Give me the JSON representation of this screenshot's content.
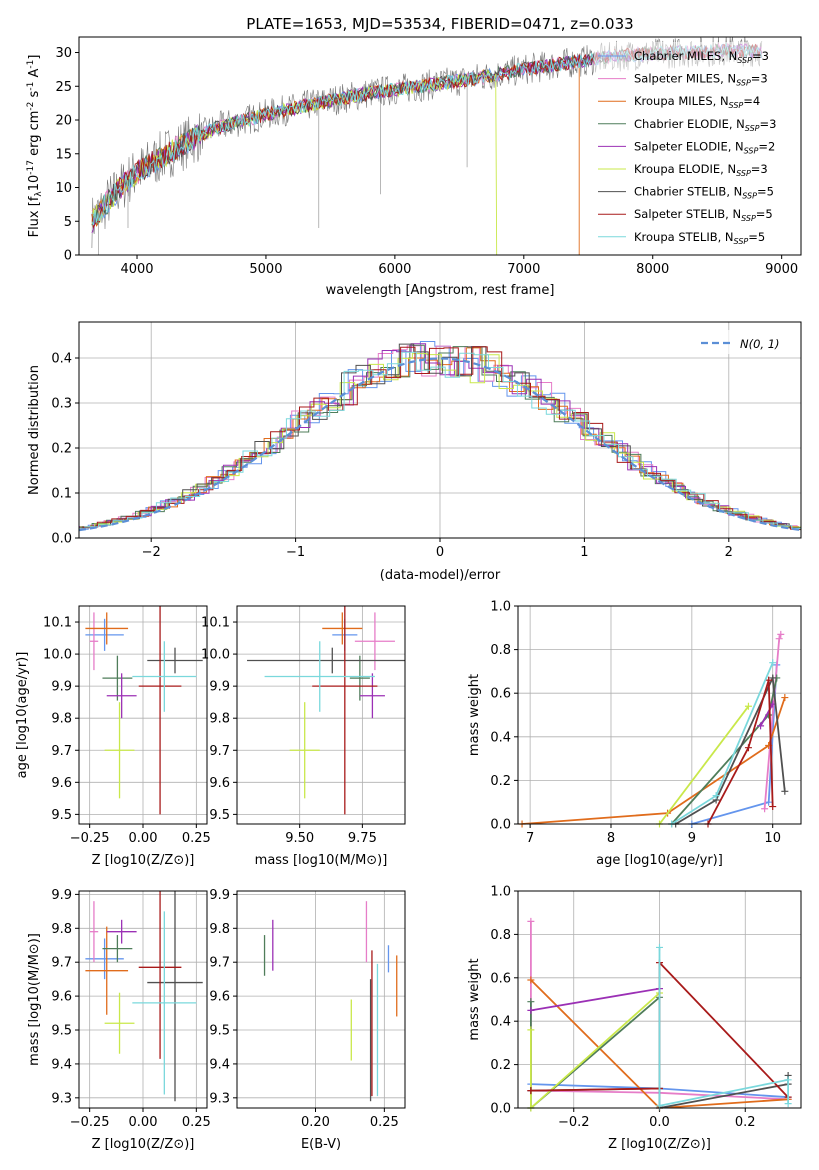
{
  "title": "PLATE=1653, MJD=53534, FIBERID=0471, z=0.033",
  "models": [
    {
      "name": "Chabrier MILES",
      "nssp": "3",
      "color": "#6495ed"
    },
    {
      "name": "Salpeter MILES",
      "nssp": "3",
      "color": "#e67dc8"
    },
    {
      "name": "Kroupa MILES",
      "nssp": "4",
      "color": "#e06c1c"
    },
    {
      "name": "Chabrier ELODIE",
      "nssp": "3",
      "color": "#4f7d5a"
    },
    {
      "name": "Salpeter ELODIE",
      "nssp": "2",
      "color": "#9b30b5"
    },
    {
      "name": "Kroupa ELODIE",
      "nssp": "3",
      "color": "#c9e84a"
    },
    {
      "name": "Chabrier STELIB",
      "nssp": "5",
      "color": "#505050"
    },
    {
      "name": "Salpeter STELIB",
      "nssp": "5",
      "color": "#a81a1a"
    },
    {
      "name": "Kroupa STELIB",
      "nssp": "5",
      "color": "#7ad8dc"
    }
  ],
  "chart_data": [
    {
      "id": "spectrum",
      "type": "line",
      "xlabel": "wavelength [Angstrom, rest frame]",
      "ylabel_parts": [
        "Flux [f",
        "λ",
        "10",
        "-17",
        " erg cm",
        "-2",
        " s",
        "-1",
        " A",
        "-1",
        "]"
      ],
      "xlim": [
        3550,
        9150
      ],
      "ylim": [
        0,
        32.3
      ],
      "xticks": [
        4000,
        5000,
        6000,
        7000,
        8000,
        9000
      ],
      "yticks": [
        0,
        5,
        10,
        15,
        20,
        25,
        30
      ],
      "legend_sub": "SSP",
      "continuum": {
        "x": [
          3650,
          3800,
          3950,
          4100,
          4300,
          4600,
          5000,
          5400,
          5800,
          6200,
          6600,
          7000,
          7400,
          7800,
          8200,
          8600,
          8850
        ],
        "y": [
          5,
          8.5,
          11.5,
          13.5,
          15.8,
          18.8,
          20.8,
          22.5,
          24.0,
          25.0,
          26.1,
          27.5,
          28.6,
          29.6,
          30.0,
          30.3,
          30.2
        ]
      },
      "drops": [
        {
          "series": "Kroupa ELODIE",
          "x": 6790,
          "label": "Kroupa ELODIE fit drop"
        },
        {
          "series": "Kroupa MILES",
          "x": 7430,
          "label": "Kroupa MILES fit drop"
        }
      ]
    },
    {
      "id": "residuals",
      "type": "step",
      "xlabel": "(data-model)/error",
      "ylabel": "Normed distribution",
      "xlim": [
        -2.5,
        2.5
      ],
      "ylim": [
        0,
        0.48
      ],
      "xticks": [
        -2,
        -1,
        0,
        1,
        2
      ],
      "xtick_labels": [
        "−2",
        "−1",
        "0",
        "1",
        "2"
      ],
      "yticks": [
        0,
        0.1,
        0.2,
        0.3,
        0.4
      ],
      "ytick_labels": [
        "0.0",
        "0.1",
        "0.2",
        "0.3",
        "0.4"
      ],
      "gaussian_label": "N(0, 1)",
      "bin_width": 0.1
    },
    {
      "id": "age_vs_Z",
      "type": "errorbar",
      "xlabel": "Z [log10(Z/Z⊙)]",
      "ylabel": "age  [log10(age/yr)]",
      "xlim": [
        -0.3,
        0.3
      ],
      "ylim": [
        9.47,
        10.15
      ],
      "xticks": [
        -0.25,
        0,
        0.25
      ],
      "xtick_labels": [
        "−0.25",
        "0.00",
        "0.25"
      ],
      "yticks": [
        9.5,
        9.6,
        9.7,
        9.8,
        9.9,
        10.0,
        10.1
      ],
      "ytick_labels": [
        "9.5",
        "9.6",
        "9.7",
        "9.8",
        "9.9",
        "10.0",
        "10.1"
      ],
      "points": [
        {
          "series": "Chabrier MILES",
          "x": -0.18,
          "xerr": 0.09,
          "y": 10.06,
          "yerr": 0.05
        },
        {
          "series": "Salpeter MILES",
          "x": -0.23,
          "xerr": 0.02,
          "y": 10.04,
          "yerr": 0.09
        },
        {
          "series": "Kroupa MILES",
          "x": -0.17,
          "xerr": 0.1,
          "y": 10.08,
          "yerr": 0.05
        },
        {
          "series": "Chabrier ELODIE",
          "x": -0.12,
          "xerr": 0.07,
          "y": 9.925,
          "yerr": 0.07
        },
        {
          "series": "Salpeter ELODIE",
          "x": -0.1,
          "xerr": 0.07,
          "y": 9.87,
          "yerr": 0.07
        },
        {
          "series": "Kroupa ELODIE",
          "x": -0.11,
          "xerr": 0.07,
          "y": 9.7,
          "yerr": 0.15
        },
        {
          "series": "Chabrier STELIB",
          "x": 0.15,
          "xerr": 0.13,
          "y": 9.98,
          "yerr": 0.04
        },
        {
          "series": "Salpeter STELIB",
          "x": 0.08,
          "xerr": 0.1,
          "y": 9.9,
          "yerr": 0.4
        },
        {
          "series": "Kroupa STELIB",
          "x": 0.1,
          "xerr": 0.15,
          "y": 9.93,
          "yerr": 0.11
        }
      ]
    },
    {
      "id": "age_vs_mass",
      "type": "errorbar",
      "xlabel": "mass [log10(M/M⊙)]",
      "ylabel": "",
      "xlim": [
        9.25,
        9.92
      ],
      "ylim": [
        9.47,
        10.15
      ],
      "xticks": [
        9.5,
        9.75
      ],
      "xtick_labels": [
        "9.50",
        "9.75"
      ],
      "yticks": [
        9.5,
        9.6,
        9.7,
        9.8,
        9.9,
        10.0,
        10.1
      ],
      "ytick_labels": [
        "9.5",
        "9.6",
        "9.7",
        "9.8",
        "9.9",
        "10.0",
        "10.1"
      ],
      "points": [
        {
          "series": "Chabrier MILES",
          "x": 9.68,
          "xerr": 0.05,
          "y": 10.06,
          "yerr": 0.05
        },
        {
          "series": "Salpeter MILES",
          "x": 9.8,
          "xerr": 0.08,
          "y": 10.04,
          "yerr": 0.09
        },
        {
          "series": "Kroupa MILES",
          "x": 9.67,
          "xerr": 0.08,
          "y": 10.08,
          "yerr": 0.05
        },
        {
          "series": "Chabrier ELODIE",
          "x": 9.74,
          "xerr": 0.04,
          "y": 9.925,
          "yerr": 0.07
        },
        {
          "series": "Salpeter ELODIE",
          "x": 9.79,
          "xerr": 0.05,
          "y": 9.87,
          "yerr": 0.07
        },
        {
          "series": "Kroupa ELODIE",
          "x": 9.52,
          "xerr": 0.06,
          "y": 9.7,
          "yerr": 0.15
        },
        {
          "series": "Chabrier STELIB",
          "x": 9.63,
          "xerr": 0.34,
          "y": 9.98,
          "yerr": 0.04
        },
        {
          "series": "Salpeter STELIB",
          "x": 9.68,
          "xerr": 0.13,
          "y": 9.9,
          "yerr": 0.4
        },
        {
          "series": "Kroupa STELIB",
          "x": 9.58,
          "xerr": 0.22,
          "y": 9.93,
          "yerr": 0.11
        }
      ]
    },
    {
      "id": "weight_vs_age",
      "type": "line",
      "xlabel": "age  [log10(age/yr)]",
      "ylabel": "mass weight",
      "xlim": [
        6.85,
        10.35
      ],
      "ylim": [
        0,
        1.0
      ],
      "xticks": [
        7,
        8,
        9,
        10
      ],
      "xtick_labels": [
        "7",
        "8",
        "9",
        "10"
      ],
      "yticks": [
        0,
        0.2,
        0.4,
        0.6,
        0.8,
        1.0
      ],
      "ytick_labels": [
        "0.0",
        "0.2",
        "0.4",
        "0.6",
        "0.8",
        "1.0"
      ],
      "series": [
        {
          "series": "Chabrier MILES",
          "x": [
            9.0,
            9.95,
            10.05
          ],
          "y": [
            0.0,
            0.1,
            0.73
          ]
        },
        {
          "series": "Salpeter MILES",
          "x": [
            9.9,
            10.08,
            10.1
          ],
          "y": [
            0.07,
            0.85,
            0.87
          ]
        },
        {
          "series": "Kroupa MILES",
          "x": [
            6.9,
            8.7,
            9.95,
            10.15
          ],
          "y": [
            0.0,
            0.05,
            0.36,
            0.58
          ]
        },
        {
          "series": "Chabrier ELODIE",
          "x": [
            8.75,
            9.95,
            10.05
          ],
          "y": [
            0.0,
            0.5,
            0.67
          ]
        },
        {
          "series": "Salpeter ELODIE",
          "x": [
            9.85,
            10.0
          ],
          "y": [
            0.45,
            0.55
          ]
        },
        {
          "series": "Kroupa ELODIE",
          "x": [
            8.6,
            9.7
          ],
          "y": [
            0.0,
            0.54
          ]
        },
        {
          "series": "Chabrier STELIB",
          "x": [
            8.8,
            9.3,
            10.0,
            10.15
          ],
          "y": [
            0.0,
            0.11,
            0.67,
            0.15
          ]
        },
        {
          "series": "Salpeter STELIB",
          "x": [
            9.2,
            9.7,
            9.95,
            10.0
          ],
          "y": [
            0.0,
            0.35,
            0.66,
            0.08
          ]
        },
        {
          "series": "Kroupa STELIB",
          "x": [
            8.75,
            9.3,
            10.0
          ],
          "y": [
            0.0,
            0.13,
            0.74
          ]
        }
      ]
    },
    {
      "id": "mass_vs_Z",
      "type": "errorbar",
      "xlabel": "Z [log10(Z/Z⊙)]",
      "ylabel": "mass [log10(M/M⊙)]",
      "xlim": [
        -0.3,
        0.3
      ],
      "ylim": [
        9.27,
        9.91
      ],
      "xticks": [
        -0.25,
        0,
        0.25
      ],
      "xtick_labels": [
        "−0.25",
        "0.00",
        "0.25"
      ],
      "yticks": [
        9.3,
        9.4,
        9.5,
        9.6,
        9.7,
        9.8,
        9.9
      ],
      "ytick_labels": [
        "9.3",
        "9.4",
        "9.5",
        "9.6",
        "9.7",
        "9.8",
        "9.9"
      ],
      "points": [
        {
          "series": "Chabrier MILES",
          "x": -0.18,
          "xerr": 0.09,
          "y": 9.71,
          "yerr": 0.06
        },
        {
          "series": "Salpeter MILES",
          "x": -0.23,
          "xerr": 0.02,
          "y": 9.79,
          "yerr": 0.09
        },
        {
          "series": "Kroupa MILES",
          "x": -0.17,
          "xerr": 0.1,
          "y": 9.675,
          "yerr": 0.13
        },
        {
          "series": "Chabrier ELODIE",
          "x": -0.12,
          "xerr": 0.07,
          "y": 9.74,
          "yerr": 0.04
        },
        {
          "series": "Salpeter ELODIE",
          "x": -0.1,
          "xerr": 0.07,
          "y": 9.79,
          "yerr": 0.035
        },
        {
          "series": "Kroupa ELODIE",
          "x": -0.11,
          "xerr": 0.07,
          "y": 9.52,
          "yerr": 0.09
        },
        {
          "series": "Chabrier STELIB",
          "x": 0.15,
          "xerr": 0.13,
          "y": 9.64,
          "yerr": 0.35
        },
        {
          "series": "Salpeter STELIB",
          "x": 0.08,
          "xerr": 0.1,
          "y": 9.685,
          "yerr": 0.27
        },
        {
          "series": "Kroupa STELIB",
          "x": 0.1,
          "xerr": 0.15,
          "y": 9.58,
          "yerr": 0.27
        }
      ]
    },
    {
      "id": "mass_vs_ebv",
      "type": "errorbar",
      "xlabel": "E(B-V)",
      "ylabel": "",
      "xlim": [
        0.143,
        0.265
      ],
      "ylim": [
        9.27,
        9.91
      ],
      "xticks": [
        0.2,
        0.25
      ],
      "xtick_labels": [
        "0.20",
        "0.25"
      ],
      "yticks": [
        9.3,
        9.4,
        9.5,
        9.6,
        9.7,
        9.8,
        9.9
      ],
      "ytick_labels": [
        "9.3",
        "9.4",
        "9.5",
        "9.6",
        "9.7",
        "9.8",
        "9.9"
      ],
      "points": [
        {
          "series": "Chabrier MILES",
          "x": 0.253,
          "xerr": 0.0,
          "y": 9.71,
          "yerr": 0.04
        },
        {
          "series": "Salpeter MILES",
          "x": 0.237,
          "xerr": 0.0,
          "y": 9.79,
          "yerr": 0.09
        },
        {
          "series": "Kroupa MILES",
          "x": 0.259,
          "xerr": 0.0,
          "y": 9.63,
          "yerr": 0.09
        },
        {
          "series": "Chabrier ELODIE",
          "x": 0.163,
          "xerr": 0.0,
          "y": 9.72,
          "yerr": 0.06
        },
        {
          "series": "Salpeter ELODIE",
          "x": 0.169,
          "xerr": 0.0,
          "y": 9.75,
          "yerr": 0.075
        },
        {
          "series": "Kroupa ELODIE",
          "x": 0.226,
          "xerr": 0.0,
          "y": 9.5,
          "yerr": 0.09
        },
        {
          "series": "Chabrier STELIB",
          "x": 0.24,
          "xerr": 0.0,
          "y": 9.47,
          "yerr": 0.18
        },
        {
          "series": "Salpeter STELIB",
          "x": 0.241,
          "xerr": 0.0,
          "y": 9.52,
          "yerr": 0.215
        },
        {
          "series": "Kroupa STELIB",
          "x": 0.245,
          "xerr": 0.0,
          "y": 9.5,
          "yerr": 0.195
        }
      ]
    },
    {
      "id": "weight_vs_Z",
      "type": "line",
      "xlabel": "Z [log10(Z/Z⊙)]",
      "ylabel": "mass weight",
      "xlim": [
        -0.33,
        0.33
      ],
      "ylim": [
        0,
        1.0
      ],
      "xticks": [
        -0.2,
        0,
        0.2
      ],
      "xtick_labels": [
        "−0.2",
        "0.0",
        "0.2"
      ],
      "yticks": [
        0,
        0.2,
        0.4,
        0.6,
        0.8,
        1.0
      ],
      "ytick_labels": [
        "0.0",
        "0.2",
        "0.4",
        "0.6",
        "0.8",
        "1.0"
      ],
      "series": [
        {
          "series": "Chabrier MILES",
          "x": [
            -0.3,
            0.0,
            0.3
          ],
          "y": [
            0.11,
            0.09,
            0.05
          ]
        },
        {
          "series": "Salpeter MILES",
          "x": [
            -0.3,
            -0.3,
            0.0,
            0.3
          ],
          "y": [
            0.86,
            0.08,
            0.07,
            0.04
          ]
        },
        {
          "series": "Kroupa MILES",
          "x": [
            -0.3,
            0.0,
            0.3
          ],
          "y": [
            0.59,
            0.0,
            0.04
          ]
        },
        {
          "series": "Chabrier ELODIE",
          "x": [
            -0.3,
            -0.3,
            0.0
          ],
          "y": [
            0.49,
            0.0,
            0.51
          ]
        },
        {
          "series": "Salpeter ELODIE",
          "x": [
            -0.3,
            0.0
          ],
          "y": [
            0.45,
            0.55
          ]
        },
        {
          "series": "Kroupa ELODIE",
          "x": [
            -0.3,
            -0.3,
            0.0
          ],
          "y": [
            0.36,
            0.0,
            0.53
          ]
        },
        {
          "series": "Chabrier STELIB",
          "x": [
            -0.3,
            0.0,
            0.0,
            0.3,
            0.3
          ],
          "y": [
            0.08,
            0.09,
            0.0,
            0.11,
            0.15
          ]
        },
        {
          "series": "Salpeter STELIB",
          "x": [
            -0.3,
            0.0,
            0.0,
            0.3
          ],
          "y": [
            0.08,
            0.09,
            0.67,
            0.05
          ]
        },
        {
          "series": "Kroupa STELIB",
          "x": [
            0.0,
            0.0,
            0.3,
            0.3
          ],
          "y": [
            0.74,
            0.01,
            0.13,
            0.02
          ]
        }
      ]
    }
  ]
}
